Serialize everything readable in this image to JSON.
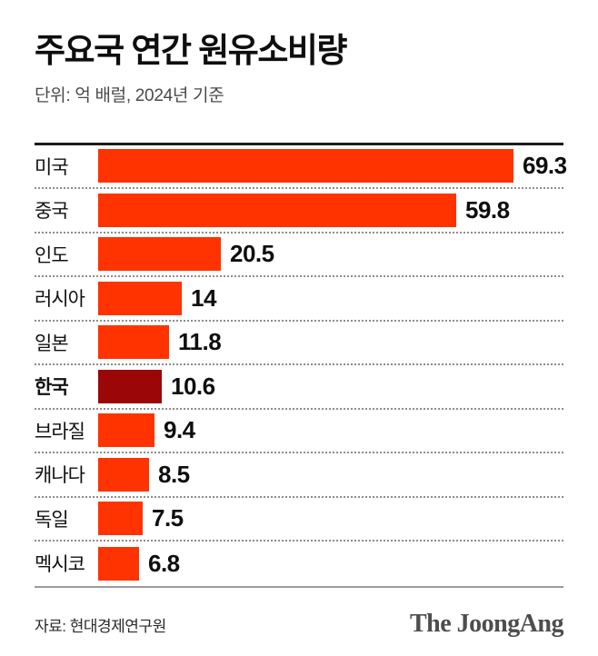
{
  "header": {
    "title": "주요국 연간 원유소비량",
    "subtitle": "단위: 억 배럴, 2024년 기준"
  },
  "chart_data": {
    "type": "bar",
    "orientation": "horizontal",
    "title": "주요국 연간 원유소비량",
    "unit": "억 배럴",
    "year": "2024",
    "categories": [
      "미국",
      "중국",
      "인도",
      "러시아",
      "일본",
      "한국",
      "브라질",
      "캐나다",
      "독일",
      "멕시코"
    ],
    "values": [
      69.3,
      59.8,
      20.5,
      14,
      11.8,
      10.6,
      9.4,
      8.5,
      7.5,
      6.8
    ],
    "value_labels": [
      "69.3",
      "59.8",
      "20.5",
      "14",
      "11.8",
      "10.6",
      "9.4",
      "8.5",
      "7.5",
      "6.8"
    ],
    "xlim": [
      0,
      70
    ],
    "legend": "none",
    "grid": "dotted-row-separators",
    "bar_color": "#ff3300",
    "highlight_category": "한국",
    "highlight_color": "#9b0707",
    "value_label_position": "right-of-bar"
  },
  "footer": {
    "source": "자료: 현대경제연구원",
    "logo": "The JoongAng"
  }
}
